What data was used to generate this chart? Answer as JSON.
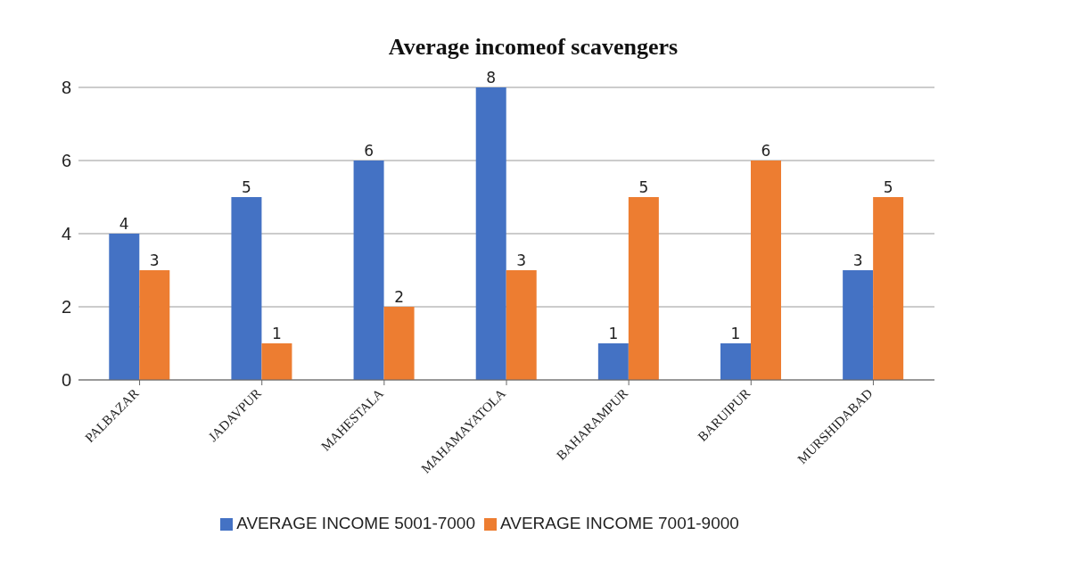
{
  "chart_data": {
    "type": "bar",
    "title": "Average incomeof scavengers",
    "categories": [
      "PALBAZAR",
      "JADAVPUR",
      "MAHESTALA",
      "MAHAMAYATOLA",
      "BAHARAMPUR",
      "BARUIPUR",
      "MURSHIDABAD"
    ],
    "series": [
      {
        "name": "AVERAGE INCOME 5001-7000",
        "color": "#4472c4",
        "values": [
          4,
          5,
          6,
          8,
          1,
          1,
          3
        ]
      },
      {
        "name": "AVERAGE INCOME 7001-9000",
        "color": "#ed7d31",
        "values": [
          3,
          1,
          2,
          3,
          5,
          6,
          5
        ]
      }
    ],
    "ylim": [
      0,
      8
    ],
    "yticks": [
      0,
      2,
      4,
      6,
      8
    ],
    "grid": "y",
    "legend": "bottom",
    "data_labels": true
  }
}
